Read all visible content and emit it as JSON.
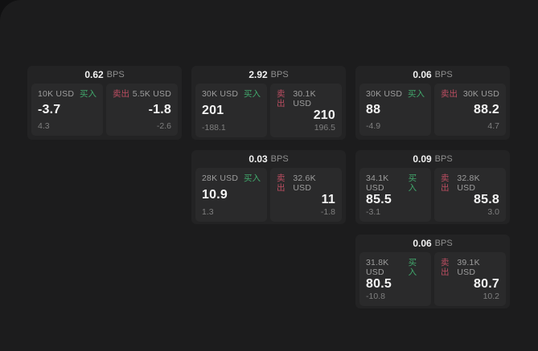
{
  "labels": {
    "bps_unit": "BPS",
    "buy": "买入",
    "sell": "卖出"
  },
  "colors": {
    "buy": "#41a86c",
    "sell": "#bb4d61",
    "surface": "#1c1c1d",
    "card": "#232324",
    "panel": "#2a2a2b",
    "value_text": "#f4f4f4",
    "muted_text": "#9d9d9d"
  },
  "cards": [
    {
      "bps": "0.62",
      "buy": {
        "notional": "10K USD",
        "value": "-3.7",
        "sub": "4.3"
      },
      "sell": {
        "notional": "5.5K USD",
        "value": "-1.8",
        "sub": "-2.6"
      }
    },
    {
      "bps": "2.92",
      "buy": {
        "notional": "30K USD",
        "value": "201",
        "sub": "-188.1"
      },
      "sell": {
        "notional": "30.1K USD",
        "value": "210",
        "sub": "196.5"
      }
    },
    {
      "bps": "0.06",
      "buy": {
        "notional": "30K USD",
        "value": "88",
        "sub": "-4.9"
      },
      "sell": {
        "notional": "30K USD",
        "value": "88.2",
        "sub": "4.7"
      }
    },
    {
      "bps": "0.03",
      "buy": {
        "notional": "28K USD",
        "value": "10.9",
        "sub": "1.3"
      },
      "sell": {
        "notional": "32.6K USD",
        "value": "11",
        "sub": "-1.8"
      }
    },
    {
      "bps": "0.09",
      "buy": {
        "notional": "34.1K USD",
        "value": "85.5",
        "sub": "-3.1"
      },
      "sell": {
        "notional": "32.8K USD",
        "value": "85.8",
        "sub": "3.0"
      }
    },
    {
      "bps": "0.06",
      "buy": {
        "notional": "31.8K USD",
        "value": "80.5",
        "sub": "-10.8"
      },
      "sell": {
        "notional": "39.1K USD",
        "value": "80.7",
        "sub": "10.2"
      }
    }
  ]
}
